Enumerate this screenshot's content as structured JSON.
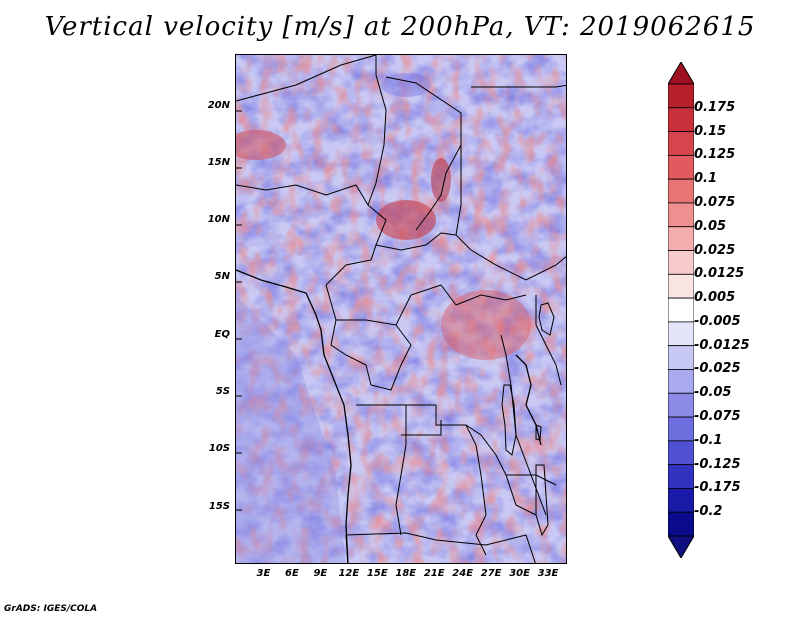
{
  "title": "Vertical velocity [m/s] at 200hPa, VT: 2019062615",
  "credit": "GrADS: IGES/COLA",
  "map": {
    "lat_ticks": [
      "20N",
      "15N",
      "10N",
      "5N",
      "EQ",
      "5S",
      "10S",
      "15S"
    ],
    "lat_values": [
      20,
      15,
      10,
      5,
      0,
      -5,
      -10,
      -15
    ],
    "lon_ticks": [
      "3E",
      "6E",
      "9E",
      "12E",
      "15E",
      "18E",
      "21E",
      "24E",
      "27E",
      "30E",
      "33E"
    ],
    "lon_values": [
      3,
      6,
      9,
      12,
      15,
      18,
      21,
      24,
      27,
      30,
      33
    ],
    "lat_range": [
      -20,
      24.5
    ],
    "lon_range": [
      0,
      35
    ]
  },
  "colorbar": {
    "labels": [
      "0.175",
      "0.15",
      "0.125",
      "0.1",
      "0.075",
      "0.05",
      "0.025",
      "0.0125",
      "0.005",
      "-0.005",
      "-0.0125",
      "-0.025",
      "-0.05",
      "-0.075",
      "-0.1",
      "-0.125",
      "-0.175",
      "-0.2"
    ],
    "colors": [
      "#b5202a",
      "#c8313a",
      "#d6454c",
      "#e05a5e",
      "#e87474",
      "#ee9090",
      "#f4adad",
      "#f8caca",
      "#fbe4e4",
      "#ffffff",
      "#e4e4fb",
      "#c8c8f5",
      "#aaaaee",
      "#8c8ce6",
      "#6e6ede",
      "#5050d0",
      "#3232c0",
      "#1a1aa8",
      "#0a0a8c"
    ],
    "top_color": "#a01020",
    "bottom_color": "#101080"
  }
}
